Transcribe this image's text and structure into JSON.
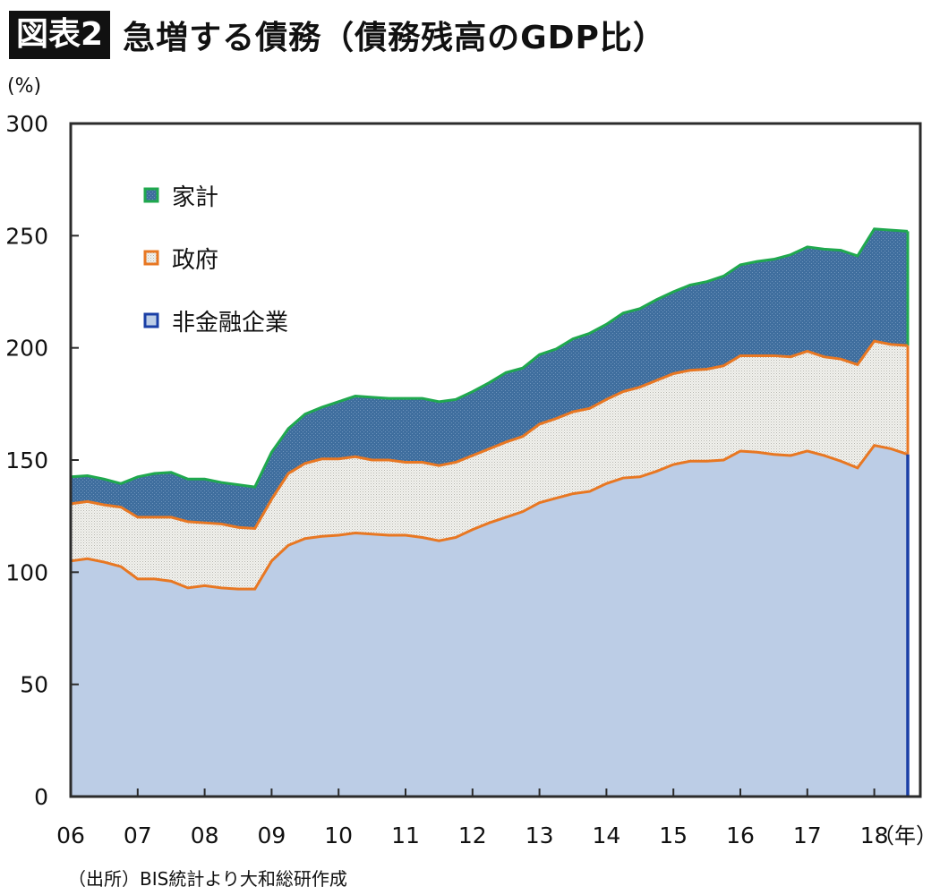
{
  "header": {
    "badge": "図表2",
    "title": "急増する債務（債務残高のGDP比）"
  },
  "unit_label": "(%)",
  "source_note": "（出所）BIS統計より大和総研作成",
  "colors": {
    "household_fill": "#3f6e9e",
    "household_line": "#1fa84e",
    "government_fill": "#e8ebe6",
    "government_line": "#e87722",
    "corporate_fill": "#bccde6",
    "corporate_line": "#1a3fa6",
    "frame": "#2b2b2b"
  },
  "chart_data": {
    "type": "area",
    "stacked": true,
    "xlabel": "",
    "x_unit_label": "（年）",
    "ylabel": "",
    "ylim": [
      0,
      300
    ],
    "y_ticks": [
      0,
      50,
      100,
      150,
      200,
      250,
      300
    ],
    "x_tick_labels": [
      "06",
      "07",
      "08",
      "09",
      "10",
      "11",
      "12",
      "13",
      "14",
      "15",
      "16",
      "17",
      "18"
    ],
    "x_tick_years": [
      2006,
      2007,
      2008,
      2009,
      2010,
      2011,
      2012,
      2013,
      2014,
      2015,
      2016,
      2017,
      2018
    ],
    "x": [
      2006.0,
      2006.25,
      2006.5,
      2006.75,
      2007.0,
      2007.25,
      2007.5,
      2007.75,
      2008.0,
      2008.25,
      2008.5,
      2008.75,
      2009.0,
      2009.25,
      2009.5,
      2009.75,
      2010.0,
      2010.25,
      2010.5,
      2010.75,
      2011.0,
      2011.25,
      2011.5,
      2011.75,
      2012.0,
      2012.25,
      2012.5,
      2012.75,
      2013.0,
      2013.25,
      2013.5,
      2013.75,
      2014.0,
      2014.25,
      2014.5,
      2014.75,
      2015.0,
      2015.25,
      2015.5,
      2015.75,
      2016.0,
      2016.25,
      2016.5,
      2016.75,
      2017.0,
      2017.25,
      2017.5,
      2017.75,
      2018.0,
      2018.25,
      2018.5
    ],
    "legend_position": "upper-left",
    "grid": false,
    "series": [
      {
        "name": "非金融企業",
        "values": [
          105,
          106,
          104.5,
          102.5,
          97,
          97,
          96,
          93,
          94,
          93,
          92.5,
          92.5,
          105,
          112,
          115,
          116,
          116.5,
          117.5,
          117,
          116.5,
          116.5,
          115.5,
          114,
          115.5,
          119,
          122,
          124.5,
          127,
          131,
          133,
          135,
          136,
          139.5,
          142,
          142.5,
          145,
          148,
          149.5,
          149.5,
          150,
          154,
          153.5,
          152.5,
          152,
          154,
          152,
          149.5,
          146.5,
          156.5,
          155,
          152.5
        ]
      },
      {
        "name": "政府",
        "values": [
          25.5,
          25.5,
          25.5,
          26.5,
          27.5,
          27.5,
          28.5,
          29.5,
          28,
          28.5,
          27.5,
          27,
          27.5,
          32,
          33.5,
          34.5,
          34,
          34,
          33,
          33.5,
          32.5,
          33.5,
          33.5,
          33.5,
          33,
          33,
          33.5,
          33.5,
          35,
          35.5,
          36.5,
          37,
          37.5,
          38.5,
          40,
          40.5,
          40.5,
          40.5,
          41,
          42,
          42.5,
          43,
          44,
          44,
          44.5,
          44,
          45.5,
          46,
          46.5,
          46.5,
          48.5
        ]
      },
      {
        "name": "家計",
        "values": [
          12,
          11.5,
          11.5,
          10.5,
          18,
          19.5,
          20,
          19,
          19.5,
          18.5,
          19,
          18.5,
          21,
          20,
          22,
          23,
          25.5,
          27,
          28,
          27.5,
          28.5,
          28.5,
          28.5,
          28,
          28.5,
          29.5,
          31,
          30.5,
          31,
          31,
          32.5,
          33.5,
          33.5,
          35,
          35,
          36,
          36.5,
          38,
          39,
          40,
          40.5,
          42,
          43,
          45.5,
          46.5,
          48,
          48.5,
          48.5,
          50,
          51,
          51
        ]
      }
    ]
  }
}
